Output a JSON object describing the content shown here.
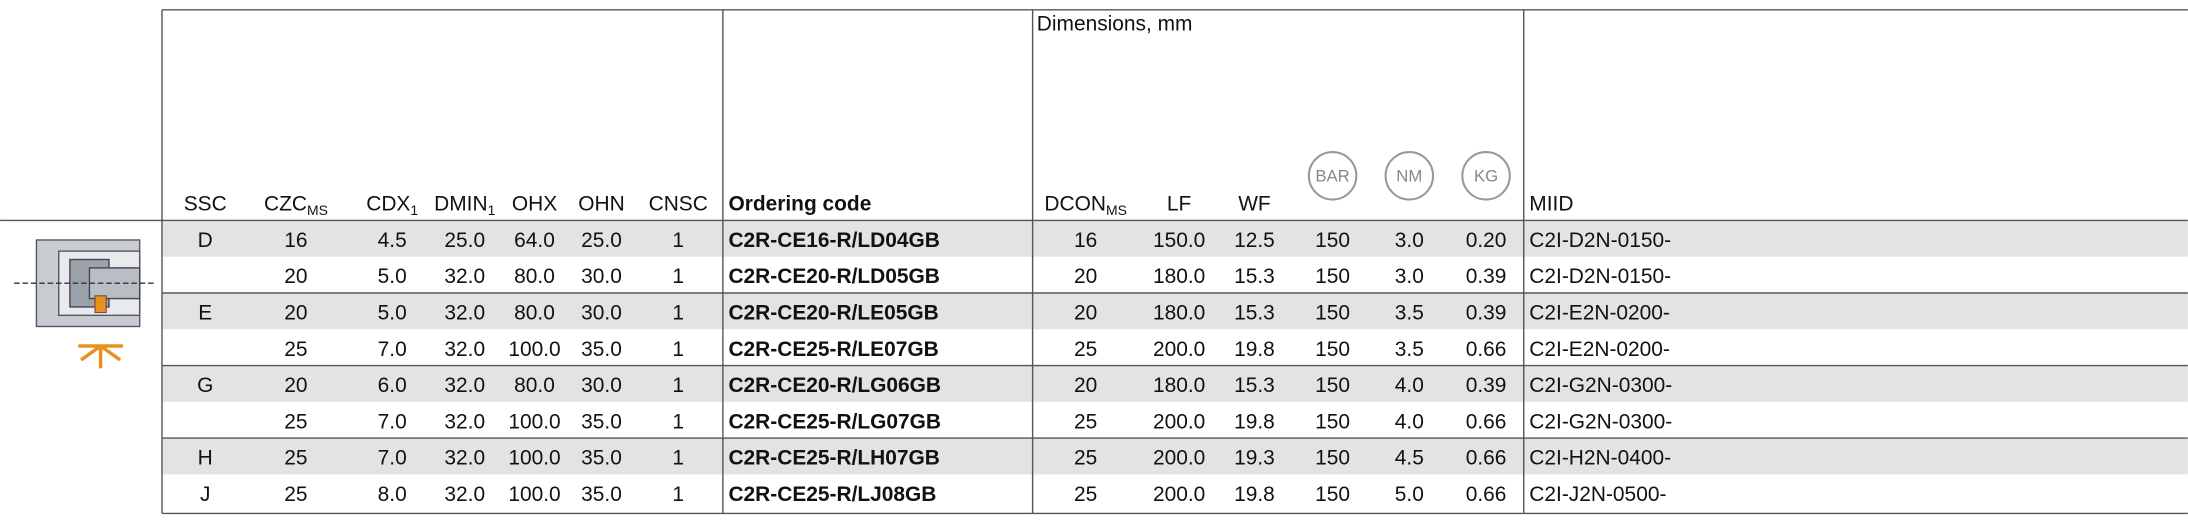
{
  "header": {
    "group_title": "Dimensions, mm",
    "columns": [
      {
        "text": "SSC"
      },
      {
        "text": "CZC",
        "sub": "MS"
      },
      {
        "text": "CDX",
        "sub": "1"
      },
      {
        "text": "DMIN",
        "sub": "1"
      },
      {
        "text": "OHX"
      },
      {
        "text": "OHN"
      },
      {
        "text": "CNSC"
      },
      {
        "text": "Ordering code",
        "bold": true
      },
      {
        "text": "DCON",
        "sub": "MS"
      },
      {
        "text": "LF"
      },
      {
        "text": "WF"
      },
      {
        "text": "BAR",
        "circle": true
      },
      {
        "text": "NM",
        "circle": true
      },
      {
        "text": "KG",
        "circle": true
      },
      {
        "text": "MIID"
      }
    ]
  },
  "table": {
    "rows": [
      [
        "D",
        "16",
        "4.5",
        "25.0",
        "64.0",
        "25.0",
        "1",
        "C2R-CE16-R/LD04GB",
        "16",
        "150.0",
        "12.5",
        "150",
        "3.0",
        "0.20",
        "C2I-D2N-0150-"
      ],
      [
        null,
        "20",
        "5.0",
        "32.0",
        "80.0",
        "30.0",
        "1",
        "C2R-CE20-R/LD05GB",
        "20",
        "180.0",
        "15.3",
        "150",
        "3.0",
        "0.39",
        "C2I-D2N-0150-"
      ],
      [
        "E",
        "20",
        "5.0",
        "32.0",
        "80.0",
        "30.0",
        "1",
        "C2R-CE20-R/LE05GB",
        "20",
        "180.0",
        "15.3",
        "150",
        "3.5",
        "0.39",
        "C2I-E2N-0200-"
      ],
      [
        null,
        "25",
        "7.0",
        "32.0",
        "100.0",
        "35.0",
        "1",
        "C2R-CE25-R/LE07GB",
        "25",
        "200.0",
        "19.8",
        "150",
        "3.5",
        "0.66",
        "C2I-E2N-0200-"
      ],
      [
        "G",
        "20",
        "6.0",
        "32.0",
        "80.0",
        "30.0",
        "1",
        "C2R-CE20-R/LG06GB",
        "20",
        "180.0",
        "15.3",
        "150",
        "4.0",
        "0.39",
        "C2I-G2N-0300-"
      ],
      [
        null,
        "25",
        "7.0",
        "32.0",
        "100.0",
        "35.0",
        "1",
        "C2R-CE25-R/LG07GB",
        "25",
        "200.0",
        "19.8",
        "150",
        "4.0",
        "0.66",
        "C2I-G2N-0300-"
      ],
      [
        "H",
        "25",
        "7.0",
        "32.0",
        "100.0",
        "35.0",
        "1",
        "C2R-CE25-R/LH07GB",
        "25",
        "200.0",
        "19.3",
        "150",
        "4.5",
        "0.66",
        "C2I-H2N-0400-"
      ],
      [
        "J",
        "25",
        "8.0",
        "32.0",
        "100.0",
        "35.0",
        "1",
        "C2R-CE25-R/LJ08GB",
        "25",
        "200.0",
        "19.8",
        "150",
        "5.0",
        "0.66",
        "C2I-J2N-0500-"
      ]
    ]
  }
}
